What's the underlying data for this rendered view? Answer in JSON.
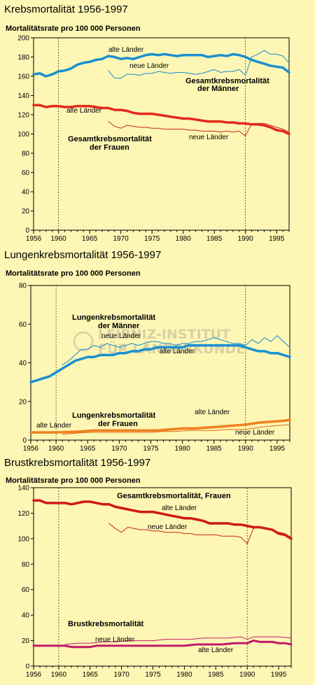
{
  "chart_data": [
    {
      "type": "line",
      "title": "Krebsmortalität 1956-1997",
      "ylabel": "Mortalitätsrate pro 100 000 Personen",
      "xlim": [
        1956,
        1997
      ],
      "ylim": [
        0,
        200
      ],
      "yticks": [
        0,
        20,
        40,
        60,
        80,
        100,
        120,
        140,
        160,
        180,
        200
      ],
      "xticks": [
        1956,
        1960,
        1965,
        1970,
        1975,
        1980,
        1985,
        1990,
        1995
      ],
      "series": [
        {
          "name": "Gesamtkrebsmortalität der Männer – alte Länder",
          "color": "#1a8fd0",
          "width": 3.5,
          "x": [
            1956,
            1957,
            1958,
            1959,
            1960,
            1961,
            1962,
            1963,
            1964,
            1965,
            1966,
            1967,
            1968,
            1969,
            1970,
            1971,
            1972,
            1973,
            1974,
            1975,
            1976,
            1977,
            1978,
            1979,
            1980,
            1981,
            1982,
            1983,
            1984,
            1985,
            1986,
            1987,
            1988,
            1989,
            1990,
            1991,
            1992,
            1993,
            1994,
            1995,
            1996,
            1997
          ],
          "y": [
            162,
            163,
            160,
            162,
            165,
            166,
            168,
            172,
            174,
            175,
            177,
            178,
            181,
            180,
            178,
            179,
            178,
            180,
            182,
            183,
            182,
            183,
            182,
            181,
            182,
            182,
            182,
            182,
            180,
            181,
            182,
            181,
            183,
            182,
            180,
            177,
            175,
            173,
            171,
            170,
            169,
            164
          ]
        },
        {
          "name": "Gesamtkrebsmortalität der Männer – neue Länder",
          "color": "#1a8fd0",
          "width": 1,
          "x": [
            1968,
            1969,
            1970,
            1971,
            1972,
            1973,
            1974,
            1975,
            1976,
            1977,
            1978,
            1979,
            1980,
            1981,
            1982,
            1983,
            1984,
            1985,
            1986,
            1987,
            1988,
            1989,
            1990,
            1991,
            1992,
            1993,
            1994,
            1995,
            1996,
            1997
          ],
          "y": [
            166,
            158,
            158,
            162,
            162,
            161,
            163,
            163,
            165,
            164,
            163,
            164,
            164,
            163,
            162,
            163,
            165,
            167,
            164,
            165,
            165,
            167,
            161,
            180,
            183,
            187,
            183,
            183,
            181,
            174
          ]
        },
        {
          "name": "Gesamtkrebsmortalität der Frauen – alte Länder",
          "color": "#e32a1c",
          "width": 3.5,
          "x": [
            1956,
            1957,
            1958,
            1959,
            1960,
            1961,
            1962,
            1963,
            1964,
            1965,
            1966,
            1967,
            1968,
            1969,
            1970,
            1971,
            1972,
            1973,
            1974,
            1975,
            1976,
            1977,
            1978,
            1979,
            1980,
            1981,
            1982,
            1983,
            1984,
            1985,
            1986,
            1987,
            1988,
            1989,
            1990,
            1991,
            1992,
            1993,
            1994,
            1995,
            1996,
            1997
          ],
          "y": [
            130,
            130,
            128,
            129,
            129,
            128,
            128,
            129,
            129,
            129,
            128,
            127,
            127,
            125,
            125,
            124,
            122,
            121,
            121,
            121,
            120,
            119,
            118,
            117,
            116,
            116,
            115,
            114,
            113,
            113,
            113,
            112,
            112,
            111,
            111,
            110,
            110,
            109,
            107,
            104,
            103,
            100
          ]
        },
        {
          "name": "Gesamtkrebsmortalität der Frauen – neue Länder",
          "color": "#c4281a",
          "width": 1,
          "x": [
            1968,
            1969,
            1970,
            1971,
            1972,
            1973,
            1974,
            1975,
            1976,
            1977,
            1978,
            1979,
            1980,
            1981,
            1982,
            1983,
            1984,
            1985,
            1986,
            1987,
            1988,
            1989,
            1990,
            1991,
            1992,
            1993,
            1994,
            1995,
            1996,
            1997
          ],
          "y": [
            113,
            108,
            106,
            109,
            108,
            107,
            107,
            106,
            106,
            105,
            105,
            105,
            105,
            104,
            104,
            103,
            103,
            103,
            102,
            103,
            102,
            103,
            98,
            111,
            111,
            111,
            109,
            107,
            105,
            102
          ]
        }
      ],
      "annotations": [
        "alte Länder",
        "neue Länder",
        "Gesamtkrebsmortalität",
        "der Männer",
        "alte Länder",
        "Gesamtkrebsmortalität",
        "der Frauen",
        "neue Länder"
      ]
    },
    {
      "type": "line",
      "title": "Lungenkrebsmortalität 1956-1997",
      "ylabel": "Mortalitätsrate pro 100 000 Personen",
      "xlim": [
        1956,
        1997
      ],
      "ylim": [
        0,
        80
      ],
      "yticks": [
        0,
        20,
        40,
        60,
        80
      ],
      "xticks": [
        1956,
        1960,
        1965,
        1970,
        1975,
        1980,
        1985,
        1990,
        1995
      ],
      "series": [
        {
          "name": "Lungenkrebsmortalität der Männer – alte Länder",
          "color": "#1a8fd0",
          "width": 3.5,
          "x": [
            1956,
            1957,
            1958,
            1959,
            1960,
            1961,
            1962,
            1963,
            1964,
            1965,
            1966,
            1967,
            1968,
            1969,
            1970,
            1971,
            1972,
            1973,
            1974,
            1975,
            1976,
            1977,
            1978,
            1979,
            1980,
            1981,
            1982,
            1983,
            1984,
            1985,
            1986,
            1987,
            1988,
            1989,
            1990,
            1991,
            1992,
            1993,
            1994,
            1995,
            1996,
            1997
          ],
          "y": [
            30,
            31,
            32,
            33,
            35,
            37,
            39,
            41,
            42,
            43,
            43,
            44,
            44,
            44,
            45,
            45,
            46,
            46,
            47,
            47,
            48,
            48,
            48,
            48,
            48,
            49,
            49,
            49,
            49,
            49,
            49,
            49,
            49,
            49,
            48,
            47,
            46,
            46,
            45,
            45,
            44,
            43
          ]
        },
        {
          "name": "Lungenkrebsmortalität der Männer – neue Länder",
          "color": "#1a8fd0",
          "width": 1,
          "x": [
            1961,
            1962,
            1963,
            1964,
            1965,
            1966,
            1967,
            1968,
            1969,
            1970,
            1971,
            1972,
            1973,
            1974,
            1975,
            1976,
            1977,
            1978,
            1979,
            1980,
            1981,
            1982,
            1983,
            1984,
            1985,
            1986,
            1987,
            1988,
            1989,
            1990,
            1991,
            1992,
            1993,
            1994,
            1995,
            1996,
            1997
          ],
          "y": [
            39,
            41,
            44,
            47,
            47,
            49,
            48,
            50,
            49,
            48,
            49,
            50,
            49,
            50,
            51,
            51,
            50,
            50,
            49,
            50,
            50,
            51,
            51,
            52,
            53,
            52,
            51,
            50,
            50,
            49,
            52,
            50,
            53,
            51,
            54,
            51,
            48
          ]
        },
        {
          "name": "Lungenkrebsmortalität der Frauen – alte Länder",
          "color": "#f08020",
          "width": 3.5,
          "x": [
            1956,
            1958,
            1960,
            1962,
            1964,
            1966,
            1968,
            1970,
            1972,
            1974,
            1976,
            1978,
            1980,
            1982,
            1984,
            1986,
            1988,
            1990,
            1992,
            1994,
            1996,
            1997
          ],
          "y": [
            4,
            4,
            4,
            4.2,
            4.5,
            5,
            5,
            5,
            5,
            5,
            5,
            5.5,
            6,
            6,
            6.5,
            7,
            7.5,
            8,
            9,
            9.5,
            10,
            10.5
          ]
        },
        {
          "name": "Lungenkrebsmortalität der Frauen – neue Länder",
          "color": "#e07018",
          "width": 1,
          "x": [
            1961,
            1963,
            1965,
            1967,
            1969,
            1971,
            1973,
            1975,
            1977,
            1979,
            1981,
            1983,
            1985,
            1987,
            1989,
            1990,
            1991,
            1993,
            1995,
            1997
          ],
          "y": [
            3,
            3.5,
            4,
            4,
            4,
            4,
            4,
            4,
            4.5,
            4.5,
            5,
            5,
            5,
            5.5,
            5.5,
            5.5,
            6,
            7,
            7.5,
            8
          ]
        }
      ],
      "annotations": [
        "Lungenkrebsmortalität",
        "der Männer",
        "neue Länder",
        "alte Länder",
        "Lungenkrebsmortalität",
        "der Frauen",
        "alte Länder",
        "alte Länder",
        "neue Länder"
      ]
    },
    {
      "type": "line",
      "title": "Brustkrebsmortalität 1956-1997",
      "ylabel": "Mortalitätsrate pro 100 000 Personen",
      "xlim": [
        1956,
        1997
      ],
      "ylim": [
        0,
        140
      ],
      "yticks": [
        0,
        20,
        40,
        60,
        80,
        100,
        120,
        140
      ],
      "xticks": [
        1956,
        1960,
        1965,
        1970,
        1975,
        1980,
        1985,
        1990,
        1995
      ],
      "series": [
        {
          "name": "Gesamtkrebsmortalität, Frauen – alte Länder",
          "color": "#d01818",
          "width": 3.5,
          "x": [
            1956,
            1957,
            1958,
            1959,
            1960,
            1961,
            1962,
            1963,
            1964,
            1965,
            1966,
            1967,
            1968,
            1969,
            1970,
            1971,
            1972,
            1973,
            1974,
            1975,
            1976,
            1977,
            1978,
            1979,
            1980,
            1981,
            1982,
            1983,
            1984,
            1985,
            1986,
            1987,
            1988,
            1989,
            1990,
            1991,
            1992,
            1993,
            1994,
            1995,
            1996,
            1997
          ],
          "y": [
            130,
            130,
            128,
            128,
            128,
            128,
            127,
            128,
            129,
            129,
            128,
            127,
            127,
            125,
            124,
            123,
            122,
            121,
            121,
            121,
            120,
            119,
            118,
            117,
            116,
            116,
            115,
            114,
            112,
            112,
            112,
            112,
            111,
            111,
            110,
            109,
            109,
            108,
            107,
            104,
            103,
            100
          ]
        },
        {
          "name": "Gesamtkrebsmortalität, Frauen – neue Länder",
          "color": "#c4281a",
          "width": 1,
          "x": [
            1968,
            1969,
            1970,
            1971,
            1972,
            1973,
            1974,
            1975,
            1976,
            1977,
            1978,
            1979,
            1980,
            1981,
            1982,
            1983,
            1984,
            1985,
            1986,
            1987,
            1988,
            1989,
            1990,
            1991,
            1992,
            1993,
            1994,
            1995,
            1996,
            1997
          ],
          "y": [
            112,
            108,
            105,
            109,
            108,
            107,
            107,
            106,
            106,
            105,
            105,
            105,
            104,
            104,
            103,
            103,
            103,
            103,
            102,
            102,
            102,
            101,
            96,
            108,
            109,
            108,
            107,
            105,
            104,
            101
          ]
        },
        {
          "name": "Brustkrebsmortalität – alte Länder",
          "color": "#c01a6a",
          "width": 3,
          "x": [
            1956,
            1960,
            1961,
            1962,
            1963,
            1964,
            1965,
            1966,
            1967,
            1968,
            1970,
            1972,
            1974,
            1976,
            1978,
            1980,
            1982,
            1984,
            1986,
            1988,
            1990,
            1991,
            1992,
            1993,
            1994,
            1995,
            1996,
            1997
          ],
          "y": [
            16,
            16,
            16,
            15,
            15,
            15,
            15,
            16,
            16,
            16,
            16,
            16,
            16,
            16,
            16,
            16,
            17,
            17,
            17,
            18,
            18,
            20,
            19,
            19,
            19,
            18,
            18,
            17
          ]
        },
        {
          "name": "Brustkrebsmortalität – neue Länder",
          "color": "#c01a6a",
          "width": 1,
          "x": [
            1961,
            1963,
            1965,
            1967,
            1969,
            1971,
            1973,
            1975,
            1977,
            1979,
            1981,
            1983,
            1985,
            1987,
            1989,
            1990,
            1991,
            1993,
            1995,
            1997
          ],
          "y": [
            17,
            18,
            18,
            19,
            19,
            20,
            20,
            20,
            21,
            21,
            21,
            22,
            22,
            22,
            23,
            21,
            23,
            23,
            23,
            22
          ]
        }
      ],
      "annotations": [
        "Gesamtkrebsmortalität, Frauen",
        "alte Länder",
        "neue Länder",
        "Brustkrebsmortalität",
        "neue Länder",
        "alte Länder"
      ]
    }
  ],
  "watermark": [
    "LEIBNIZ-INSTITUT",
    "FÜR LÄNDERKUNDE"
  ]
}
